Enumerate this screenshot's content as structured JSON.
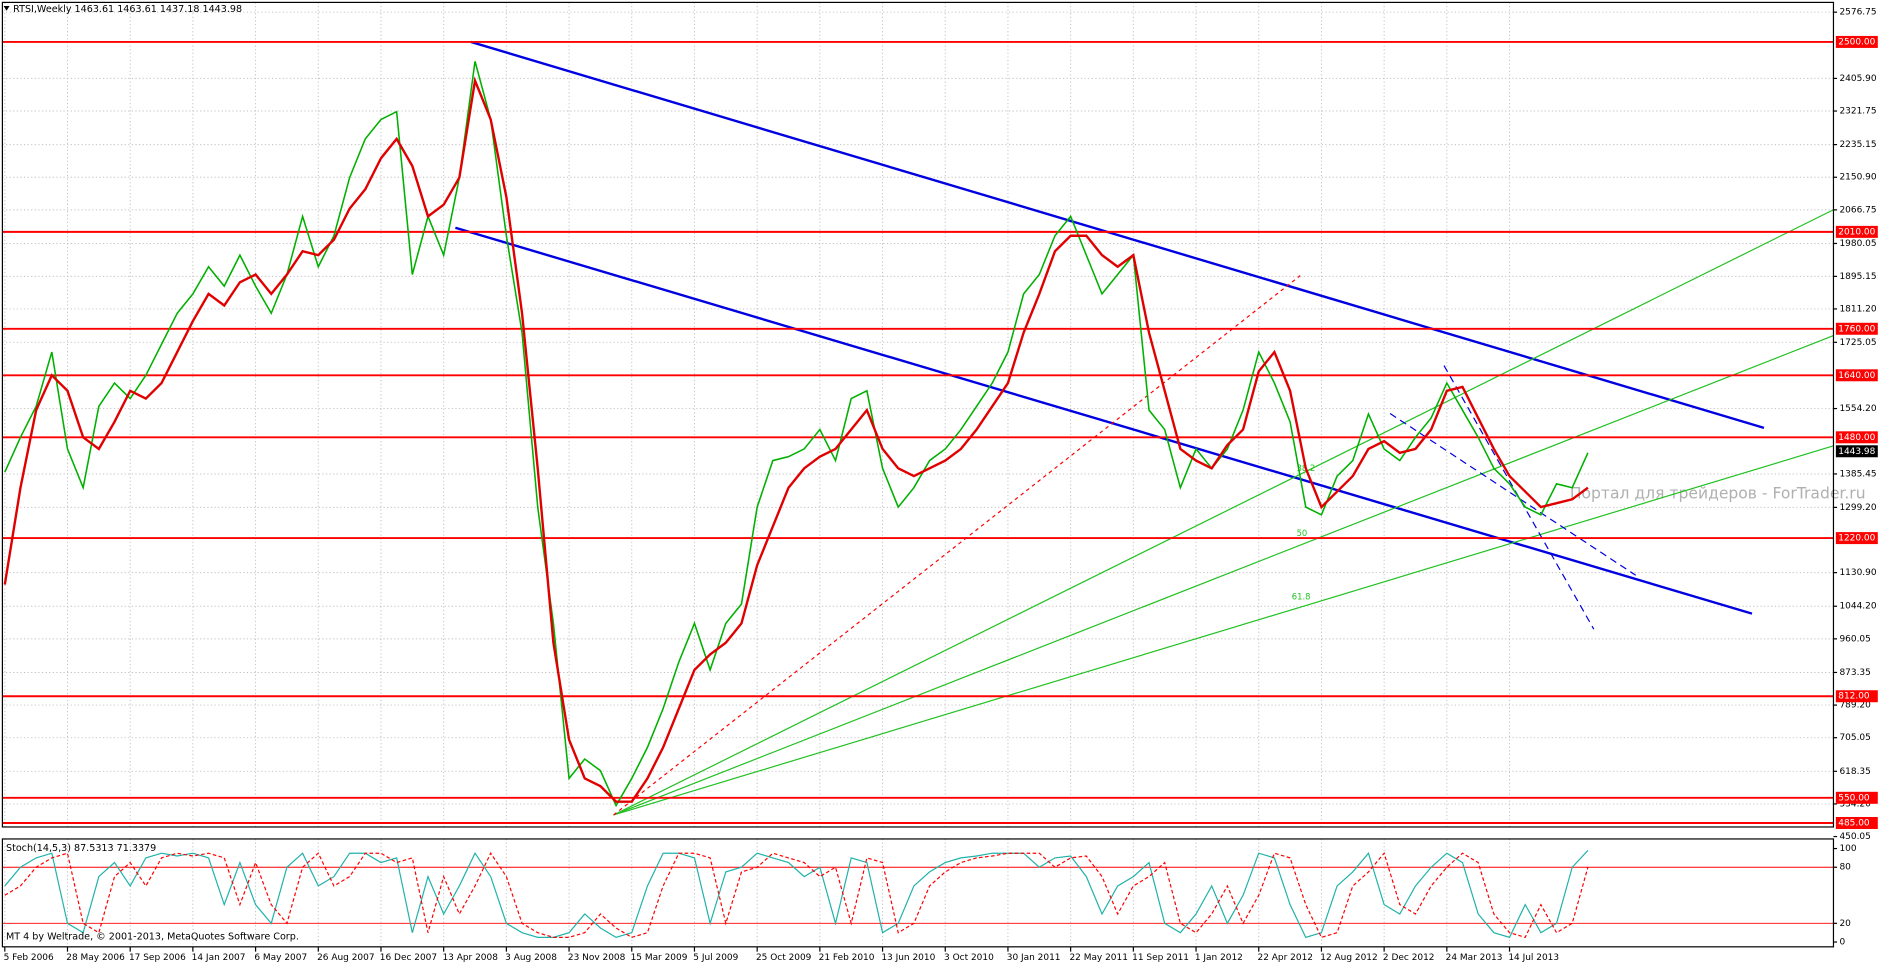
{
  "footer": "MT 4 by Weltrade, © 2001-2013, MetaQuotes Software Corp.",
  "watermark": "Портал для трейдеров - ForTrader.ru",
  "chart_data": [
    {
      "type": "line",
      "title": "RTSI,Weekly 1463.61 1463.61 1437.18 1443.98",
      "x_tick_labels": [
        "5 Feb 2006",
        "28 May 2006",
        "17 Sep 2006",
        "14 Jan 2007",
        "6 May 2007",
        "26 Aug 2007",
        "16 Dec 2007",
        "13 Apr 2008",
        "3 Aug 2008",
        "23 Nov 2008",
        "15 Mar 2009",
        "5 Jul 2009",
        "25 Oct 2009",
        "21 Feb 2010",
        "13 Jun 2010",
        "3 Oct 2010",
        "30 Jan 2011",
        "22 May 2011",
        "11 Sep 2011",
        "1 Jan 2012",
        "22 Apr 2012",
        "12 Aug 2012",
        "2 Dec 2012",
        "24 Mar 2013",
        "14 Jul 2013"
      ],
      "ylim": [
        450,
        2602
      ],
      "yticks": [
        2576.75,
        {
          "value": 2405.9,
          "label": "2405.90"
        },
        2321.75,
        2235.15,
        {
          "value": 2150.9,
          "label": "2150.90"
        },
        2066.75,
        1980.05,
        1895.15,
        {
          "value": 1811.2,
          "label": "1811.20"
        },
        1725.05,
        {
          "value": 1554.2,
          "label": "1554.20"
        },
        1385.45,
        {
          "value": 1299.2,
          "label": "1299.20"
        },
        {
          "value": 1130.9,
          "label": "1130.90"
        },
        {
          "value": 1044.2,
          "label": "1044.20"
        },
        960.05,
        873.35,
        {
          "value": 789.2,
          "label": "789.20"
        },
        705.05,
        618.35,
        {
          "value": 534.2,
          "label": "534.20"
        },
        450.05
      ],
      "grid": true,
      "levels": [
        {
          "value": 2500,
          "label": "2500.00"
        },
        {
          "value": 2010,
          "label": "2010.00"
        },
        {
          "value": 1760,
          "label": "1760.00"
        },
        {
          "value": 1640,
          "label": "1640.00"
        },
        {
          "value": 1480,
          "label": "1480.00"
        },
        {
          "value": 1220,
          "label": "1220.00"
        },
        {
          "value": 812,
          "label": "812.00"
        },
        {
          "value": 550,
          "label": "550.00"
        },
        {
          "value": 485,
          "label": "485.00"
        }
      ],
      "level_color": "#ff0000",
      "last_price": 1443.98,
      "annotations": [
        "38.2",
        "50",
        "61.8"
      ],
      "series": [
        {
          "color": "#00b000",
          "values": [
            1390,
            1480,
            1560,
            1700,
            1450,
            1350,
            1560,
            1620,
            1580,
            1640,
            1720,
            1800,
            1850,
            1920,
            1870,
            1950,
            1870,
            1800,
            1900,
            2050,
            1920,
            2000,
            2150,
            2250,
            2300,
            2320,
            1900,
            2050,
            1950,
            2150,
            2450,
            2300,
            2000,
            1750,
            1300,
            1000,
            600,
            650,
            620,
            530,
            600,
            680,
            780,
            900,
            1000,
            880,
            1000,
            1050,
            1300,
            1420,
            1430,
            1450,
            1500,
            1420,
            1580,
            1600,
            1400,
            1300,
            1350,
            1420,
            1450,
            1500,
            1560,
            1620,
            1700,
            1850,
            1900,
            2000,
            2050,
            1950,
            1850,
            1900,
            1950,
            1550,
            1500,
            1350,
            1450,
            1400,
            1450,
            1550,
            1700,
            1620,
            1520,
            1300,
            1280,
            1380,
            1420,
            1540,
            1450,
            1420,
            1480,
            1530,
            1620,
            1550,
            1480,
            1400,
            1360,
            1300,
            1280,
            1360,
            1350,
            1440
          ]
        },
        {
          "color": "#e00000",
          "values": [
            1100,
            1350,
            1550,
            1640,
            1600,
            1480,
            1450,
            1520,
            1600,
            1580,
            1620,
            1700,
            1780,
            1850,
            1820,
            1880,
            1900,
            1850,
            1900,
            1960,
            1950,
            1990,
            2070,
            2120,
            2200,
            2250,
            2180,
            2050,
            2080,
            2150,
            2400,
            2300,
            2100,
            1800,
            1400,
            950,
            700,
            600,
            580,
            540,
            540,
            600,
            680,
            780,
            880,
            920,
            950,
            1000,
            1150,
            1250,
            1350,
            1400,
            1430,
            1450,
            1500,
            1550,
            1450,
            1400,
            1380,
            1400,
            1420,
            1450,
            1500,
            1560,
            1620,
            1750,
            1850,
            1960,
            2000,
            2000,
            1950,
            1920,
            1950,
            1750,
            1600,
            1450,
            1420,
            1400,
            1460,
            1500,
            1650,
            1700,
            1600,
            1400,
            1300,
            1340,
            1380,
            1450,
            1470,
            1440,
            1450,
            1500,
            1600,
            1610,
            1530,
            1450,
            1380,
            1340,
            1300,
            1310,
            1320,
            1350
          ]
        }
      ]
    },
    {
      "type": "line",
      "title": "Stoch(14,5,3) 87.5313 71.3379",
      "ylim": [
        0,
        100
      ],
      "yticks": [
        100,
        80,
        20,
        0
      ],
      "levels": [
        80,
        20
      ],
      "level_color": "#ff0000",
      "series": [
        {
          "color": "#20b2aa",
          "values": [
            60,
            80,
            90,
            95,
            20,
            10,
            70,
            85,
            60,
            90,
            95,
            92,
            95,
            90,
            40,
            85,
            40,
            20,
            80,
            95,
            60,
            70,
            95,
            95,
            85,
            90,
            10,
            70,
            30,
            60,
            95,
            70,
            20,
            10,
            5,
            5,
            10,
            30,
            15,
            5,
            10,
            60,
            95,
            95,
            90,
            20,
            75,
            80,
            95,
            90,
            85,
            70,
            80,
            20,
            90,
            85,
            10,
            20,
            60,
            75,
            85,
            90,
            92,
            95,
            95,
            95,
            80,
            90,
            92,
            70,
            30,
            60,
            70,
            85,
            20,
            10,
            30,
            60,
            20,
            50,
            95,
            90,
            40,
            5,
            10,
            60,
            75,
            95,
            40,
            30,
            60,
            80,
            95,
            85,
            30,
            10,
            5,
            40,
            10,
            20,
            80,
            98
          ]
        },
        {
          "color": "#ff0000",
          "dash": true,
          "values": [
            50,
            60,
            80,
            90,
            95,
            20,
            10,
            70,
            85,
            60,
            90,
            95,
            92,
            95,
            90,
            40,
            85,
            40,
            20,
            80,
            95,
            60,
            70,
            95,
            95,
            85,
            90,
            10,
            70,
            30,
            60,
            95,
            70,
            20,
            10,
            5,
            5,
            10,
            30,
            15,
            5,
            10,
            60,
            95,
            95,
            90,
            20,
            75,
            80,
            95,
            90,
            85,
            70,
            80,
            20,
            90,
            85,
            10,
            20,
            60,
            75,
            85,
            90,
            92,
            95,
            95,
            95,
            80,
            90,
            92,
            70,
            30,
            60,
            70,
            85,
            20,
            10,
            30,
            60,
            20,
            50,
            95,
            90,
            40,
            5,
            10,
            60,
            75,
            95,
            40,
            30,
            60,
            80,
            95,
            85,
            30,
            10,
            5,
            40,
            10,
            20,
            80
          ]
        }
      ]
    }
  ]
}
